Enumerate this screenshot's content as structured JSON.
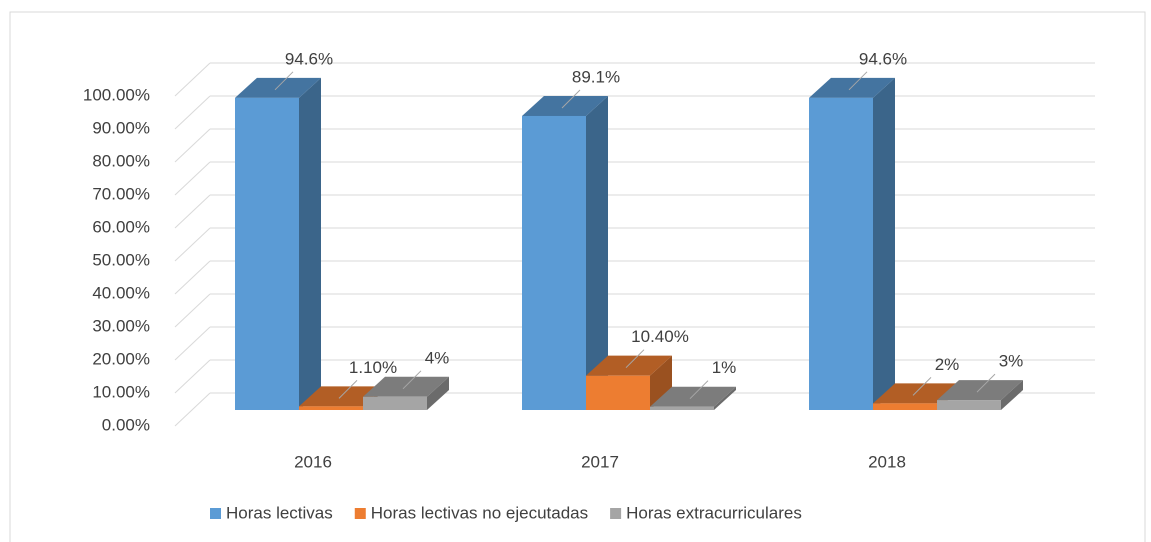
{
  "chart_data": {
    "type": "bar3d",
    "categories": [
      "2016",
      "2017",
      "2018"
    ],
    "series": [
      {
        "name": "Horas lectivas",
        "color": "#5b9bd5",
        "values": [
          94.6,
          89.1,
          94.6
        ],
        "value_labels": [
          "94.6%",
          "89.1%",
          "94.6%"
        ]
      },
      {
        "name": "Horas lectivas no ejecutadas",
        "color": "#ed7d31",
        "values": [
          1.1,
          10.4,
          2
        ],
        "value_labels": [
          "1.10%",
          "10.40%",
          "2%"
        ]
      },
      {
        "name": "Horas extracurriculares",
        "color": "#a5a5a5",
        "values": [
          4,
          1,
          3
        ],
        "value_labels": [
          "4%",
          "1%",
          "3%"
        ]
      }
    ],
    "ylim": [
      0,
      100
    ],
    "yticks": [
      {
        "value": 0,
        "label": "0.00%"
      },
      {
        "value": 10,
        "label": "10.00%"
      },
      {
        "value": 20,
        "label": "20.00%"
      },
      {
        "value": 30,
        "label": "30.00%"
      },
      {
        "value": 40,
        "label": "40.00%"
      },
      {
        "value": 50,
        "label": "50.00%"
      },
      {
        "value": 60,
        "label": "60.00%"
      },
      {
        "value": 70,
        "label": "70.00%"
      },
      {
        "value": 80,
        "label": "80.00%"
      },
      {
        "value": 90,
        "label": "90.00%"
      },
      {
        "value": 100,
        "label": "100.00%"
      }
    ],
    "grid": true,
    "legend": "bottom"
  }
}
